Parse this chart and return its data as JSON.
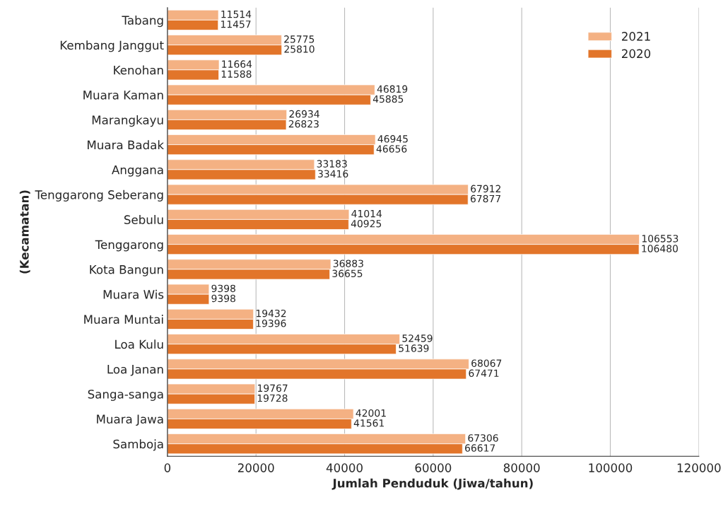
{
  "chart_data": {
    "type": "bar",
    "orientation": "horizontal",
    "xlabel": "Jumlah Penduduk (Jiwa/tahun)",
    "ylabel": "(Kecamatan)",
    "categories": [
      "Tabang",
      "Kembang Janggut",
      "Kenohan",
      "Muara Kaman",
      "Marangkayu",
      "Muara Badak",
      "Anggana",
      "Tenggarong Seberang",
      "Sebulu",
      "Tenggarong",
      "Kota Bangun",
      "Muara Wis",
      "Muara Muntai",
      "Loa Kulu",
      "Loa Janan",
      "Sanga-sanga",
      "Muara Jawa",
      "Samboja"
    ],
    "series": [
      {
        "name": "2021",
        "color": "#f4b183",
        "values": [
          11514,
          25775,
          11664,
          46819,
          26934,
          46945,
          33183,
          67912,
          41014,
          106553,
          36883,
          9398,
          19432,
          52459,
          68067,
          19767,
          42001,
          67306
        ]
      },
      {
        "name": "2020",
        "color": "#e2752a",
        "values": [
          11457,
          25810,
          11588,
          45885,
          26823,
          46656,
          33416,
          67877,
          40925,
          106480,
          36655,
          9398,
          19396,
          51639,
          67471,
          19728,
          41561,
          66617
        ]
      }
    ],
    "xlim": [
      0,
      120000
    ],
    "xticks": [
      0,
      20000,
      40000,
      60000,
      80000,
      100000,
      120000
    ],
    "grid": "x",
    "legend": "top right",
    "data_labels": true
  }
}
